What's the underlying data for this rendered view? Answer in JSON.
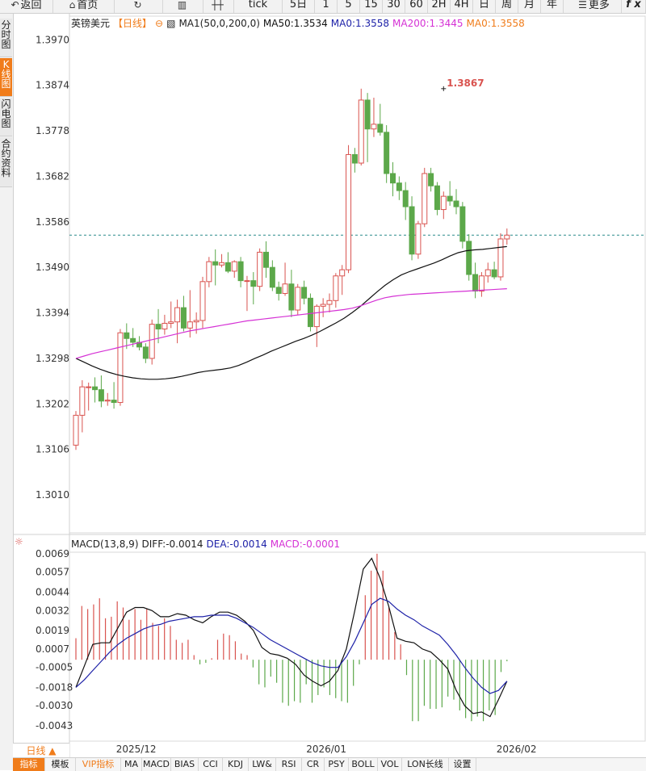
{
  "toolbar": {
    "back": "返回",
    "home": "首页",
    "tick": "tick",
    "periods": [
      "5日",
      "1",
      "5",
      "15",
      "30",
      "60",
      "2H",
      "4H",
      "日",
      "周",
      "月",
      "年"
    ],
    "more": "更多",
    "fx": "f x"
  },
  "side_tabs": [
    "分时图",
    "K线图",
    "闪电图",
    "合约资料"
  ],
  "legend": {
    "symbol": "英镑美元",
    "period": "【日线】",
    "ma_params": "MA1(50,0,200,0)",
    "ma50": "MA50:1.3534",
    "ma0a": "MA0:1.3558",
    "ma200": "MA200:1.3445",
    "ma0b": "MA0:1.3558"
  },
  "macd_legend": {
    "name": "MACD(13,8,9)",
    "diff": "DIFF:-0.0014",
    "dea": "DEA:-0.0014",
    "macd": "MACD:-0.0001"
  },
  "period_button": "日线 ▲",
  "indicators": [
    "指标",
    "模板",
    "VIP指标",
    "MA",
    "MACD",
    "BIAS",
    "CCI",
    "KDJ",
    "LW&",
    "RSI",
    "CR",
    "PSY",
    "BOLL",
    "VOL",
    "LON长线",
    "设置"
  ],
  "colors": {
    "up": "#d9534f",
    "down": "#5ca84a",
    "ma50": "#111111",
    "ma200": "#d531d5",
    "diff": "#111111",
    "dea": "#1e22a8",
    "accent": "#f07c1a",
    "dashed_last": "#2a8a8a"
  },
  "chart_data": {
    "type": "candlestick",
    "symbol": "英镑美元",
    "period": "日线",
    "y_ticks": [
      "1.3970",
      "1.3874",
      "1.3778",
      "1.3682",
      "1.3586",
      "1.3490",
      "1.3394",
      "1.3298",
      "1.3202",
      "1.3106",
      "1.3010"
    ],
    "ylim": [
      1.293,
      1.402
    ],
    "x_ticks": [
      {
        "label": "2025/12",
        "index": 9
      },
      {
        "label": "2026/01",
        "index": 39
      },
      {
        "label": "2026/02",
        "index": 69
      }
    ],
    "last_price": 1.3558,
    "high_marker": {
      "label": "1.3867",
      "index": 58,
      "value": 1.3867
    },
    "candles": [
      {
        "o": 1.3115,
        "h": 1.3187,
        "l": 1.3105,
        "c": 1.3178
      },
      {
        "o": 1.3178,
        "h": 1.3252,
        "l": 1.3142,
        "c": 1.3238
      },
      {
        "o": 1.3238,
        "h": 1.3247,
        "l": 1.3188,
        "c": 1.3238
      },
      {
        "o": 1.3238,
        "h": 1.3258,
        "l": 1.3205,
        "c": 1.3232
      },
      {
        "o": 1.3232,
        "h": 1.3262,
        "l": 1.3195,
        "c": 1.3208
      },
      {
        "o": 1.3208,
        "h": 1.3225,
        "l": 1.3198,
        "c": 1.321
      },
      {
        "o": 1.321,
        "h": 1.3248,
        "l": 1.3192,
        "c": 1.3205
      },
      {
        "o": 1.3205,
        "h": 1.336,
        "l": 1.3198,
        "c": 1.3352
      },
      {
        "o": 1.3352,
        "h": 1.3372,
        "l": 1.3318,
        "c": 1.334
      },
      {
        "o": 1.334,
        "h": 1.3362,
        "l": 1.3322,
        "c": 1.3332
      },
      {
        "o": 1.3332,
        "h": 1.3345,
        "l": 1.3315,
        "c": 1.3322
      },
      {
        "o": 1.3322,
        "h": 1.333,
        "l": 1.3288,
        "c": 1.3298
      },
      {
        "o": 1.3298,
        "h": 1.338,
        "l": 1.3285,
        "c": 1.337
      },
      {
        "o": 1.337,
        "h": 1.3402,
        "l": 1.333,
        "c": 1.336
      },
      {
        "o": 1.336,
        "h": 1.339,
        "l": 1.3348,
        "c": 1.3372
      },
      {
        "o": 1.3372,
        "h": 1.3418,
        "l": 1.3362,
        "c": 1.3375
      },
      {
        "o": 1.3375,
        "h": 1.3422,
        "l": 1.333,
        "c": 1.3405
      },
      {
        "o": 1.3405,
        "h": 1.343,
        "l": 1.3355,
        "c": 1.3362
      },
      {
        "o": 1.3362,
        "h": 1.3442,
        "l": 1.3342,
        "c": 1.3375
      },
      {
        "o": 1.3375,
        "h": 1.3395,
        "l": 1.335,
        "c": 1.3378
      },
      {
        "o": 1.3378,
        "h": 1.347,
        "l": 1.3362,
        "c": 1.346
      },
      {
        "o": 1.346,
        "h": 1.3512,
        "l": 1.3448,
        "c": 1.3502
      },
      {
        "o": 1.3502,
        "h": 1.3528,
        "l": 1.3452,
        "c": 1.3495
      },
      {
        "o": 1.3495,
        "h": 1.3518,
        "l": 1.349,
        "c": 1.35
      },
      {
        "o": 1.35,
        "h": 1.3522,
        "l": 1.3478,
        "c": 1.3482
      },
      {
        "o": 1.3482,
        "h": 1.3505,
        "l": 1.3468,
        "c": 1.3502
      },
      {
        "o": 1.3502,
        "h": 1.3512,
        "l": 1.3448,
        "c": 1.3462
      },
      {
        "o": 1.3462,
        "h": 1.3472,
        "l": 1.3398,
        "c": 1.3462
      },
      {
        "o": 1.3462,
        "h": 1.348,
        "l": 1.3412,
        "c": 1.345
      },
      {
        "o": 1.345,
        "h": 1.353,
        "l": 1.344,
        "c": 1.3522
      },
      {
        "o": 1.3522,
        "h": 1.3545,
        "l": 1.3468,
        "c": 1.349
      },
      {
        "o": 1.349,
        "h": 1.3505,
        "l": 1.344,
        "c": 1.3448
      },
      {
        "o": 1.3448,
        "h": 1.346,
        "l": 1.342,
        "c": 1.3435
      },
      {
        "o": 1.3435,
        "h": 1.35,
        "l": 1.343,
        "c": 1.3455
      },
      {
        "o": 1.3455,
        "h": 1.3485,
        "l": 1.3385,
        "c": 1.34
      },
      {
        "o": 1.34,
        "h": 1.3455,
        "l": 1.339,
        "c": 1.3448
      },
      {
        "o": 1.3448,
        "h": 1.3462,
        "l": 1.3412,
        "c": 1.3425
      },
      {
        "o": 1.3425,
        "h": 1.3435,
        "l": 1.3355,
        "c": 1.3365
      },
      {
        "o": 1.3365,
        "h": 1.3412,
        "l": 1.3322,
        "c": 1.3408
      },
      {
        "o": 1.3408,
        "h": 1.3425,
        "l": 1.3385,
        "c": 1.3412
      },
      {
        "o": 1.3412,
        "h": 1.3435,
        "l": 1.3395,
        "c": 1.342
      },
      {
        "o": 1.342,
        "h": 1.3478,
        "l": 1.3405,
        "c": 1.3472
      },
      {
        "o": 1.3472,
        "h": 1.3495,
        "l": 1.3432,
        "c": 1.3485
      },
      {
        "o": 1.3485,
        "h": 1.3748,
        "l": 1.3478,
        "c": 1.3728
      },
      {
        "o": 1.3728,
        "h": 1.3742,
        "l": 1.369,
        "c": 1.371
      },
      {
        "o": 1.371,
        "h": 1.3867,
        "l": 1.3705,
        "c": 1.3843
      },
      {
        "o": 1.3843,
        "h": 1.3858,
        "l": 1.3712,
        "c": 1.3782
      },
      {
        "o": 1.3782,
        "h": 1.3848,
        "l": 1.3765,
        "c": 1.3792
      },
      {
        "o": 1.3792,
        "h": 1.3835,
        "l": 1.3768,
        "c": 1.3775
      },
      {
        "o": 1.3775,
        "h": 1.379,
        "l": 1.3668,
        "c": 1.3688
      },
      {
        "o": 1.3688,
        "h": 1.3712,
        "l": 1.364,
        "c": 1.3668
      },
      {
        "o": 1.3668,
        "h": 1.3682,
        "l": 1.3632,
        "c": 1.3652
      },
      {
        "o": 1.3652,
        "h": 1.367,
        "l": 1.359,
        "c": 1.3618
      },
      {
        "o": 1.3618,
        "h": 1.364,
        "l": 1.3505,
        "c": 1.3518
      },
      {
        "o": 1.3518,
        "h": 1.3588,
        "l": 1.3508,
        "c": 1.3582
      },
      {
        "o": 1.3582,
        "h": 1.37,
        "l": 1.3575,
        "c": 1.3688
      },
      {
        "o": 1.3688,
        "h": 1.37,
        "l": 1.365,
        "c": 1.3662
      },
      {
        "o": 1.3662,
        "h": 1.367,
        "l": 1.36,
        "c": 1.3612
      },
      {
        "o": 1.3612,
        "h": 1.365,
        "l": 1.3592,
        "c": 1.364
      },
      {
        "o": 1.364,
        "h": 1.3672,
        "l": 1.362,
        "c": 1.363
      },
      {
        "o": 1.363,
        "h": 1.3655,
        "l": 1.3602,
        "c": 1.3618
      },
      {
        "o": 1.3618,
        "h": 1.3628,
        "l": 1.353,
        "c": 1.3545
      },
      {
        "o": 1.3545,
        "h": 1.356,
        "l": 1.3462,
        "c": 1.3475
      },
      {
        "o": 1.3475,
        "h": 1.35,
        "l": 1.3425,
        "c": 1.344
      },
      {
        "o": 1.344,
        "h": 1.348,
        "l": 1.3428,
        "c": 1.3472
      },
      {
        "o": 1.3472,
        "h": 1.35,
        "l": 1.3458,
        "c": 1.3485
      },
      {
        "o": 1.3485,
        "h": 1.3502,
        "l": 1.3465,
        "c": 1.347
      },
      {
        "o": 1.347,
        "h": 1.3562,
        "l": 1.3462,
        "c": 1.355
      },
      {
        "o": 1.355,
        "h": 1.3572,
        "l": 1.3538,
        "c": 1.3558
      }
    ],
    "ma50": [
      1.3298,
      1.329,
      1.3282,
      1.3275,
      1.3269,
      1.3264,
      1.326,
      1.3257,
      1.3255,
      1.3254,
      1.3254,
      1.3255,
      1.3257,
      1.326,
      1.3264,
      1.3268,
      1.3271,
      1.3273,
      1.3275,
      1.3278,
      1.3283,
      1.329,
      1.3298,
      1.3305,
      1.3313,
      1.332,
      1.3327,
      1.3334,
      1.334,
      1.3347,
      1.3355,
      1.3364,
      1.3373,
      1.3383,
      1.3395,
      1.3408,
      1.3423,
      1.3438,
      1.3452,
      1.3464,
      1.3474,
      1.3481,
      1.3487,
      1.3493,
      1.3499,
      1.3506,
      1.3514,
      1.3521,
      1.3525,
      1.3527,
      1.3528,
      1.353,
      1.3532,
      1.3534
    ],
    "ma50_start_index": 0,
    "ma200": [
      1.3298,
      1.3303,
      1.3308,
      1.3312,
      1.3316,
      1.332,
      1.3324,
      1.3328,
      1.3332,
      1.3336,
      1.334,
      1.3344,
      1.3348,
      1.3352,
      1.3356,
      1.3359,
      1.3362,
      1.3365,
      1.3368,
      1.3371,
      1.3374,
      1.3377,
      1.3379,
      1.3381,
      1.3383,
      1.3385,
      1.3387,
      1.3389,
      1.3391,
      1.3393,
      1.3395,
      1.3397,
      1.3399,
      1.3401,
      1.3404,
      1.3409,
      1.3415,
      1.3421,
      1.3426,
      1.3429,
      1.3431,
      1.3433,
      1.3434,
      1.3435,
      1.3436,
      1.3437,
      1.3438,
      1.3439,
      1.344,
      1.3441,
      1.3442,
      1.3443,
      1.3444,
      1.3445
    ],
    "macd": {
      "y_ticks": [
        "0.0069",
        "0.0057",
        "0.0044",
        "0.0032",
        "0.0019",
        "0.0007",
        "-0.0005",
        "-0.0018",
        "-0.0030",
        "-0.0043"
      ],
      "ylim": [
        -0.0053,
        0.007
      ],
      "hist": [
        0.0014,
        0.0035,
        0.0033,
        0.0036,
        0.004,
        0.0027,
        0.0028,
        0.0038,
        0.0034,
        0.0026,
        0.0033,
        0.0026,
        0.0033,
        0.0024,
        0.0022,
        0.0027,
        0.0022,
        0.0013,
        0.0011,
        0.0013,
        0.0003,
        -0.0003,
        -0.0002,
        0.0001,
        0.0013,
        0.0017,
        0.0016,
        0.0012,
        0.0004,
        0.0003,
        -0.0005,
        -0.0016,
        -0.0018,
        -0.0011,
        -0.0015,
        -0.0028,
        -0.003,
        -0.0027,
        -0.0028,
        -0.0016,
        -0.0028,
        -0.0023,
        -0.0018,
        -0.0023,
        -0.0025,
        -0.0027,
        -0.0028,
        -0.0017,
        -0.0003,
        0.0042,
        0.0058,
        0.0069,
        0.0058,
        0.0034,
        0.0018,
        0.001,
        -0.001,
        -0.004,
        -0.004,
        -0.003,
        -0.0032,
        -0.0032,
        -0.0031,
        -0.0024,
        -0.0026,
        -0.0033,
        -0.0038,
        -0.004,
        -0.0037,
        -0.004,
        -0.0033,
        -0.0036,
        -0.0008,
        -0.0001
      ],
      "diff": [
        -0.0018,
        -0.0004,
        0.001,
        0.0011,
        0.0011,
        0.0021,
        0.0031,
        0.0034,
        0.0034,
        0.0032,
        0.0028,
        0.0028,
        0.003,
        0.0029,
        0.0026,
        0.0024,
        0.0028,
        0.0031,
        0.0031,
        0.0029,
        0.0025,
        0.0019,
        0.0008,
        0.0004,
        0.0003,
        0.0001,
        -0.0003,
        -0.001,
        -0.0014,
        -0.0017,
        -0.0014,
        -0.0007,
        0.0007,
        0.0032,
        0.0059,
        0.0066,
        0.0053,
        0.0035,
        0.0014,
        0.0012,
        0.0011,
        0.0007,
        0.0005,
        0.0,
        -0.0006,
        -0.002,
        -0.003,
        -0.0035,
        -0.0034,
        -0.0037,
        -0.0026,
        -0.0014
      ],
      "dea": [
        -0.0018,
        -0.0013,
        -0.0007,
        -0.0001,
        0.0005,
        0.001,
        0.0014,
        0.0017,
        0.002,
        0.0022,
        0.0023,
        0.0025,
        0.0026,
        0.0027,
        0.0028,
        0.0028,
        0.0029,
        0.0029,
        0.0029,
        0.0027,
        0.0024,
        0.0021,
        0.0017,
        0.0013,
        0.001,
        0.0007,
        0.0004,
        0.0001,
        -0.0002,
        -0.0004,
        -0.0005,
        -0.0005,
        0.0002,
        0.0012,
        0.0024,
        0.0036,
        0.004,
        0.0038,
        0.0033,
        0.0029,
        0.0026,
        0.0022,
        0.0019,
        0.0016,
        0.001,
        0.0003,
        -0.0005,
        -0.0012,
        -0.0018,
        -0.0022,
        -0.002,
        -0.0014
      ]
    }
  }
}
